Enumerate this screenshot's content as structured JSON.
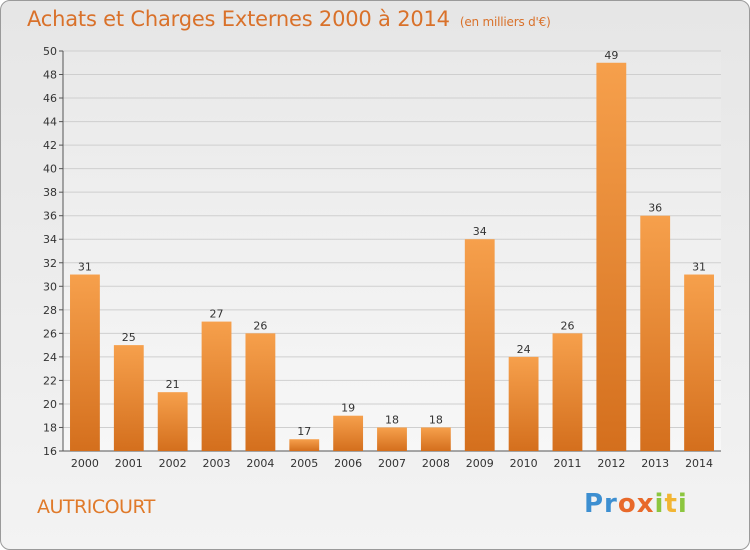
{
  "title": "Achats et Charges Externes 2000 à 2014",
  "subtitle": "(en milliers d'€)",
  "commune": "AUTRICOURT",
  "logo_text": "Proxiti",
  "colors": {
    "bar": "#f0913a",
    "bar_dark": "#d2711f",
    "title": "#d9712a",
    "grid": "#cfcfcf"
  },
  "chart_data": {
    "type": "bar",
    "title": "Achats et Charges Externes 2000 à 2014",
    "subtitle": "(en milliers d'€)",
    "categories": [
      "2000",
      "2001",
      "2002",
      "2003",
      "2004",
      "2005",
      "2006",
      "2007",
      "2008",
      "2009",
      "2010",
      "2011",
      "2012",
      "2013",
      "2014"
    ],
    "values": [
      31,
      25,
      21,
      27,
      26,
      17,
      19,
      18,
      18,
      34,
      24,
      26,
      49,
      36,
      31
    ],
    "xlabel": "",
    "ylabel": "",
    "ylim": [
      16,
      50
    ],
    "yticks": [
      16,
      18,
      20,
      22,
      24,
      26,
      28,
      30,
      32,
      34,
      36,
      38,
      40,
      42,
      44,
      46,
      48,
      50
    ],
    "grid": true,
    "legend": "none"
  }
}
